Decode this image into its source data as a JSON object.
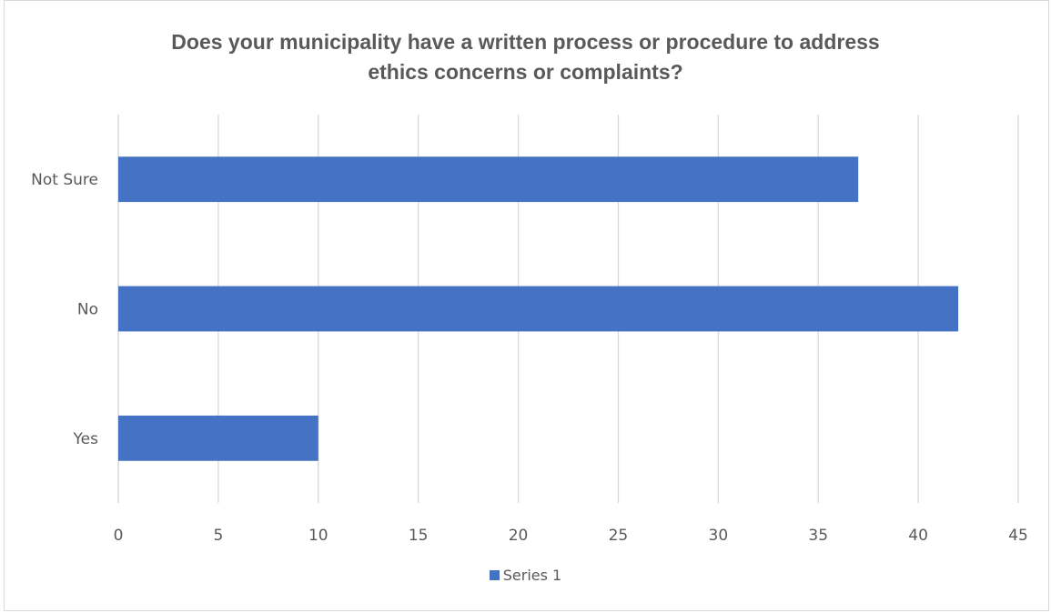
{
  "chart_data": {
    "type": "bar",
    "orientation": "horizontal",
    "title_lines": [
      "Does your municipality have a written process or procedure to address",
      "ethics concerns or complaints?"
    ],
    "categories": [
      "Yes",
      "No",
      "Not Sure"
    ],
    "series": [
      {
        "name": "Series 1",
        "values": [
          10,
          42,
          37
        ],
        "color": "#4472c4"
      }
    ],
    "xlim": [
      0,
      45
    ],
    "x_ticks": [
      0,
      5,
      10,
      15,
      20,
      25,
      30,
      35,
      40,
      45
    ],
    "grid": true,
    "legend_position": "bottom"
  }
}
